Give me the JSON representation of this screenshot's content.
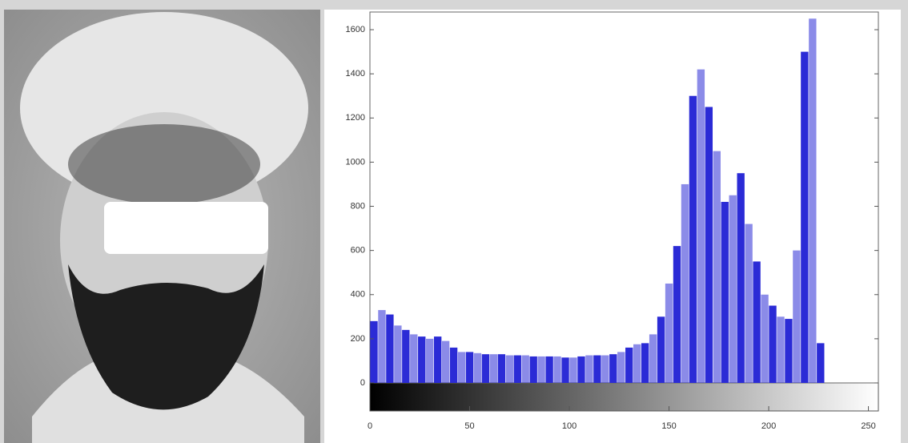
{
  "chart_data": {
    "type": "histogram",
    "bins": [
      0,
      4,
      8,
      12,
      16,
      20,
      24,
      28,
      32,
      36,
      40,
      44,
      48,
      52,
      56,
      60,
      64,
      68,
      72,
      76,
      80,
      84,
      88,
      92,
      96,
      100,
      104,
      108,
      112,
      116,
      120,
      124,
      128,
      132,
      136,
      140,
      144,
      148,
      152,
      156,
      160,
      164,
      168,
      172,
      176,
      180,
      184,
      188,
      192,
      196,
      200,
      204,
      208,
      212,
      216,
      220,
      224,
      228,
      232,
      236,
      240,
      244,
      248,
      252,
      256
    ],
    "values": [
      280,
      330,
      310,
      260,
      240,
      220,
      210,
      200,
      210,
      190,
      160,
      140,
      140,
      135,
      130,
      130,
      130,
      125,
      125,
      125,
      120,
      120,
      120,
      120,
      115,
      115,
      120,
      125,
      125,
      125,
      130,
      140,
      160,
      175,
      180,
      220,
      300,
      450,
      620,
      900,
      1300,
      1420,
      1250,
      1050,
      820,
      850,
      950,
      720,
      550,
      400,
      350,
      300,
      290,
      600,
      1500,
      1650,
      180,
      0,
      0,
      0,
      0,
      0,
      0,
      0
    ],
    "color": "#2b2bd6",
    "xlim": [
      0,
      255
    ],
    "xticks": [
      0,
      50,
      100,
      150,
      200,
      250
    ],
    "ylim": [
      0,
      1680
    ],
    "yticks": [
      0,
      200,
      400,
      600,
      800,
      1000,
      1200,
      1400,
      1600
    ]
  }
}
